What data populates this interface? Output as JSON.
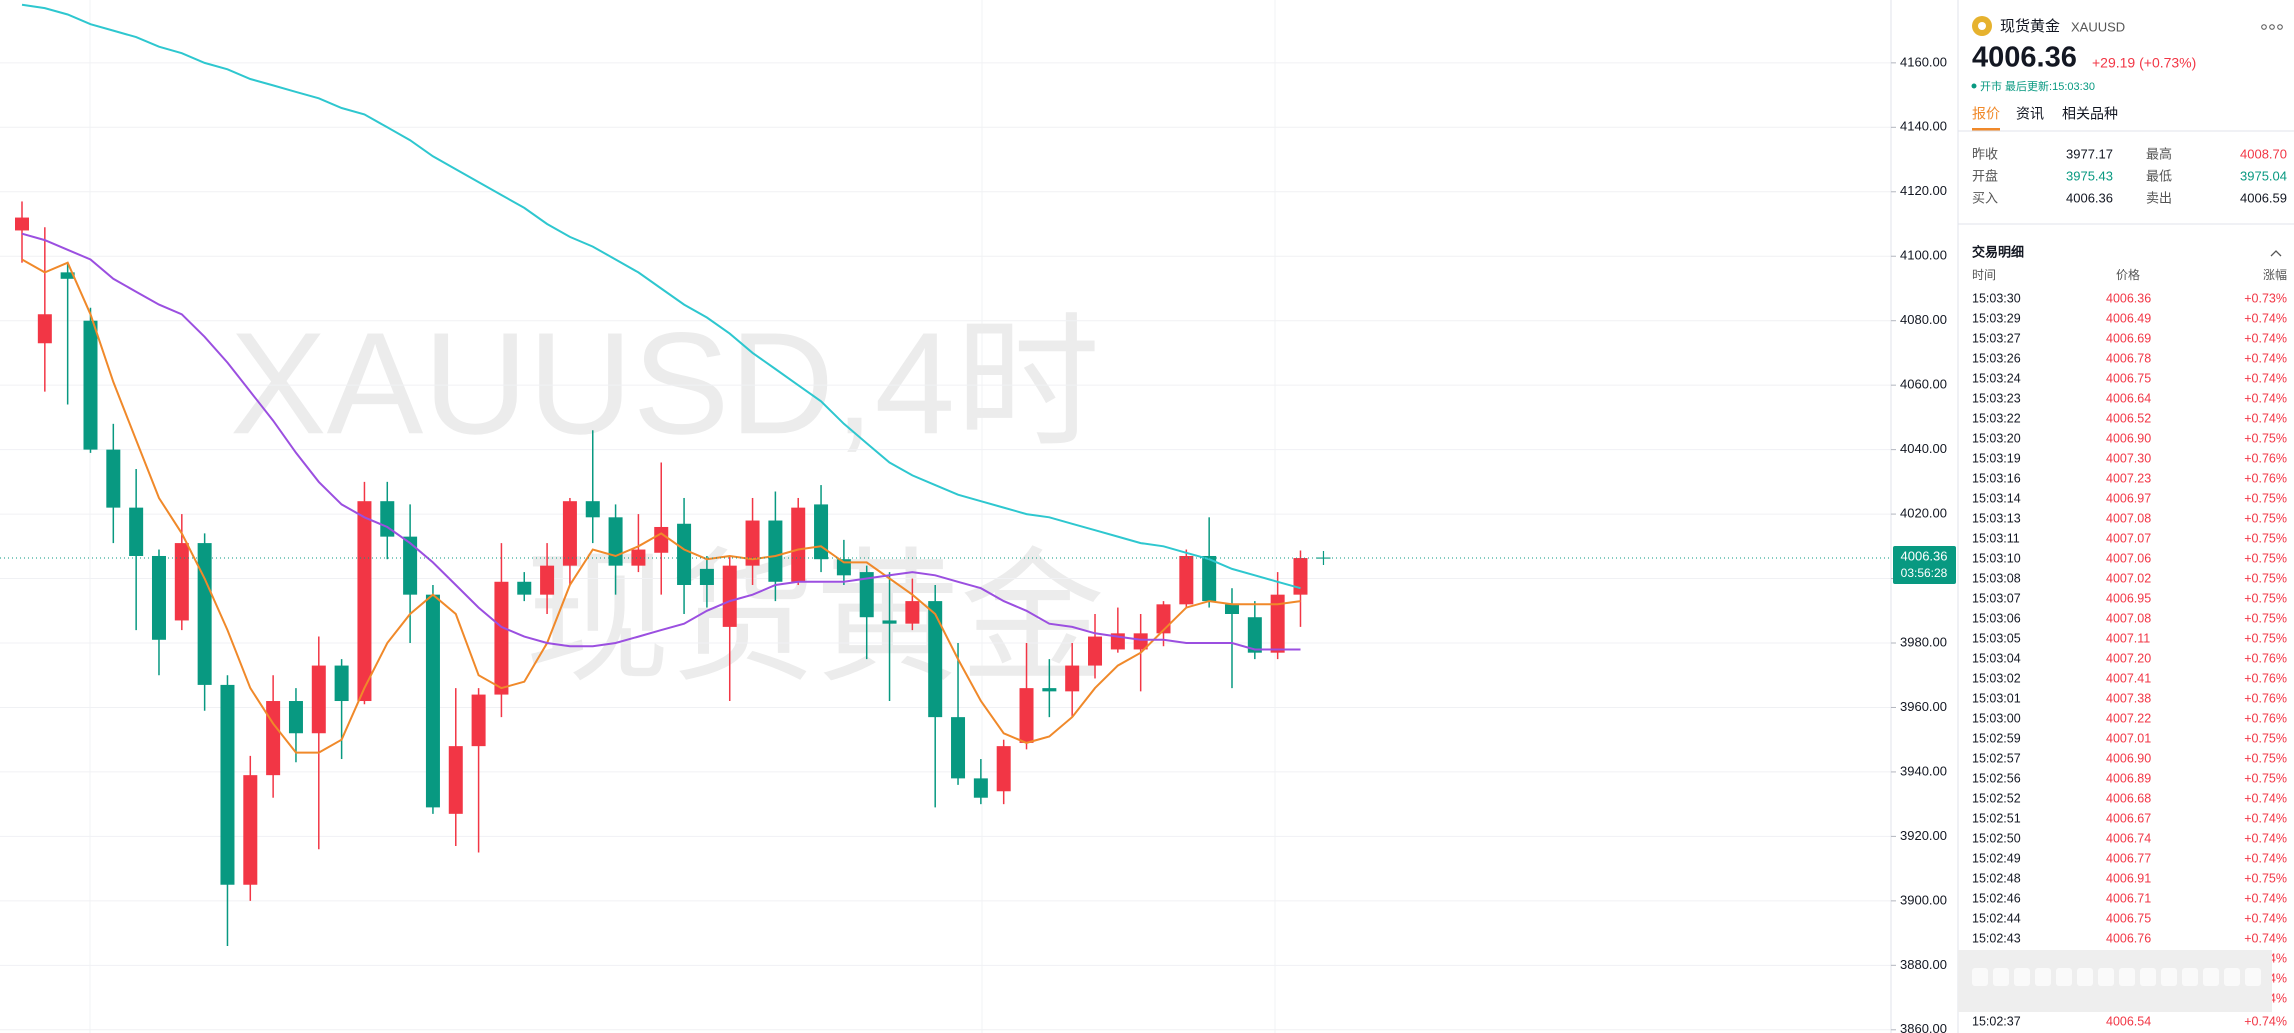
{
  "chart_data": {
    "type": "candlestick",
    "watermark": "XAUUSD,4时",
    "watermark_name": "现货黄金",
    "up_color": "#f23645",
    "down_color": "#089981",
    "open": [
      4108,
      4073,
      4095,
      4080,
      4040,
      4022,
      4007,
      3987,
      4011,
      3967,
      3905,
      3939,
      3962,
      3952,
      3973,
      3962,
      4024,
      4013,
      3995,
      3927,
      3948,
      3964,
      3999,
      3995,
      4004,
      4024,
      4019,
      4004,
      4008,
      4017,
      4003,
      3985,
      4004,
      4018,
      3999,
      4023,
      4006,
      4002,
      3987,
      3986,
      3993,
      3957,
      3938,
      3934,
      3949,
      3966,
      3965,
      3973,
      3978,
      3978,
      3983,
      3992,
      4007,
      3992,
      3988,
      3977,
      3995
    ],
    "high": [
      4117,
      4109,
      4098,
      4084,
      4048,
      4034,
      4009,
      4020,
      4014,
      3970,
      3945,
      3970,
      3966,
      3982,
      3975,
      4030,
      4030,
      4023,
      3998,
      3966,
      3966,
      4011,
      4002,
      4011,
      4025,
      4046,
      4023,
      4020,
      4036,
      4025,
      4007,
      4007,
      4025,
      4027,
      4025,
      4029,
      4012,
      4004,
      4002,
      4000,
      3998,
      3980,
      3944,
      3950,
      3980,
      3975,
      3980,
      3989,
      3991,
      3989,
      3993,
      4009,
      4019,
      3997,
      3993,
      4002,
      4008.7
    ],
    "low": [
      4098,
      4058,
      4054,
      4039,
      4011,
      3984,
      3970,
      3984,
      3959,
      3886,
      3900,
      3932,
      3943,
      3916,
      3944,
      3961,
      4006,
      3980,
      3927,
      3917,
      3915,
      3957,
      3993,
      3989,
      3998,
      4011,
      3995,
      4002,
      3995,
      3989,
      3991,
      3962,
      3998,
      3993,
      3998,
      4002,
      3998,
      3975,
      3962,
      3984,
      3929,
      3936,
      3930,
      3930,
      3947,
      3957,
      3957,
      3969,
      3977,
      3965,
      3979,
      3991,
      3991,
      3966,
      3975,
      3975,
      3985
    ],
    "close": [
      4112,
      4082,
      4093,
      4040,
      4022,
      4007,
      3981,
      4011,
      3967,
      3905,
      3939,
      3962,
      3952,
      3973,
      3962,
      4024,
      4013,
      3995,
      3929,
      3948,
      3964,
      3999,
      3995,
      4004,
      4024,
      4019,
      4004,
      4009,
      4016,
      3998,
      3998,
      4004,
      4018,
      3999,
      4022,
      4006,
      4001,
      3988,
      3986,
      3993,
      3957,
      3938,
      3932,
      3948,
      3966,
      3965,
      3973,
      3982,
      3983,
      3983,
      3992,
      4007,
      3993,
      3989,
      3977,
      3995,
      4006.36
    ],
    "series": [
      {
        "color": "#2ec7cf",
        "values": [
          4178,
          4177,
          4175,
          4172,
          4170,
          4168,
          4165,
          4163,
          4160,
          4158,
          4155,
          4153,
          4151,
          4149,
          4146,
          4144,
          4140,
          4136,
          4131,
          4127,
          4123,
          4119,
          4115,
          4110,
          4106,
          4103,
          4099,
          4095,
          4090,
          4085,
          4081,
          4076,
          4070,
          4065,
          4060,
          4055,
          4048,
          4042,
          4036,
          4032,
          4029,
          4026,
          4024,
          4022,
          4020,
          4019,
          4017,
          4015,
          4013,
          4011,
          4010,
          4008,
          4006,
          4003,
          4001,
          3999,
          3997
        ]
      },
      {
        "color": "#f0892a",
        "values": [
          4099,
          4095,
          4098,
          4082,
          4061,
          4043,
          4025,
          4014,
          4000,
          3984,
          3966,
          3955,
          3946,
          3946,
          3950,
          3966,
          3980,
          3989,
          3995,
          3989,
          3970,
          3966,
          3968,
          3980,
          3998,
          4009,
          4007,
          4010,
          4014,
          4009,
          4006,
          4007,
          4006,
          4007,
          4009,
          4010,
          4005,
          4005,
          4000,
          3995,
          3989,
          3975,
          3962,
          3952,
          3949,
          3951,
          3957,
          3966,
          3973,
          3977,
          3984,
          3991,
          3993,
          3992,
          3992,
          3992,
          3993
        ]
      },
      {
        "color": "#9b4fe0",
        "values": [
          4107,
          4105,
          4102,
          4099,
          4093,
          4089,
          4085,
          4082,
          4075,
          4067,
          4058,
          4049,
          4039,
          4030,
          4023,
          4019,
          4016,
          4011,
          4005,
          3998,
          3991,
          3985,
          3982,
          3980,
          3979,
          3979,
          3980,
          3982,
          3984,
          3986,
          3990,
          3993,
          3995,
          3998,
          3999,
          3999,
          3999,
          4000,
          4001,
          4002,
          4001,
          3999,
          3997,
          3993,
          3990,
          3986,
          3985,
          3983,
          3982,
          3981,
          3981,
          3980,
          3980,
          3980,
          3978,
          3978,
          3978
        ]
      }
    ],
    "ylim": [
      3859,
      4179.5
    ],
    "yticks": [
      {
        "value": 4160,
        "label": "4160.00"
      },
      {
        "value": 4140,
        "label": "4140.00"
      },
      {
        "value": 4120,
        "label": "4120.00"
      },
      {
        "value": 4100,
        "label": "4100.00"
      },
      {
        "value": 4080,
        "label": "4080.00"
      },
      {
        "value": 4060,
        "label": "4060.00"
      },
      {
        "value": 4040,
        "label": "4040.00"
      },
      {
        "value": 4020,
        "label": "4020.00"
      },
      {
        "value": 4000,
        "label": "4000.00"
      },
      {
        "value": 3980,
        "label": "3980.00"
      },
      {
        "value": 3960,
        "label": "3960.00"
      },
      {
        "value": 3940,
        "label": "3940.00"
      },
      {
        "value": 3920,
        "label": "3920.00"
      },
      {
        "value": 3900,
        "label": "3900.00"
      },
      {
        "value": 3880,
        "label": "3880.00"
      },
      {
        "value": 3860,
        "label": "3860.00"
      }
    ],
    "grid": true,
    "last_price": 4006.36,
    "countdown": "03:56:28"
  },
  "panel": {
    "name": "现货黄金",
    "symbol": "XAUUSD",
    "price": "4006.36",
    "change": "+29.19 (+0.73%)",
    "status": "开市 最后更新:15:03:30",
    "tabs": [
      "报价",
      "资讯",
      "相关品种"
    ],
    "stats": [
      [
        "昨收",
        "3977.17",
        "最高",
        "4008.70"
      ],
      [
        "开盘",
        "3975.43",
        "最低",
        "3975.04"
      ],
      [
        "买入",
        "4006.36",
        "卖出",
        "4006.59"
      ]
    ],
    "trades_title": "交易明细",
    "trades_header": [
      "时间",
      "价格",
      "涨幅"
    ],
    "trades": [
      [
        "15:03:30",
        "4006.36",
        "+0.73%"
      ],
      [
        "15:03:29",
        "4006.49",
        "+0.74%"
      ],
      [
        "15:03:27",
        "4006.69",
        "+0.74%"
      ],
      [
        "15:03:26",
        "4006.78",
        "+0.74%"
      ],
      [
        "15:03:24",
        "4006.75",
        "+0.74%"
      ],
      [
        "15:03:23",
        "4006.64",
        "+0.74%"
      ],
      [
        "15:03:22",
        "4006.52",
        "+0.74%"
      ],
      [
        "15:03:20",
        "4006.90",
        "+0.75%"
      ],
      [
        "15:03:19",
        "4007.30",
        "+0.76%"
      ],
      [
        "15:03:16",
        "4007.23",
        "+0.76%"
      ],
      [
        "15:03:14",
        "4006.97",
        "+0.75%"
      ],
      [
        "15:03:13",
        "4007.08",
        "+0.75%"
      ],
      [
        "15:03:11",
        "4007.07",
        "+0.75%"
      ],
      [
        "15:03:10",
        "4007.06",
        "+0.75%"
      ],
      [
        "15:03:08",
        "4007.02",
        "+0.75%"
      ],
      [
        "15:03:07",
        "4006.95",
        "+0.75%"
      ],
      [
        "15:03:06",
        "4007.08",
        "+0.75%"
      ],
      [
        "15:03:05",
        "4007.11",
        "+0.75%"
      ],
      [
        "15:03:04",
        "4007.20",
        "+0.76%"
      ],
      [
        "15:03:02",
        "4007.41",
        "+0.76%"
      ],
      [
        "15:03:01",
        "4007.38",
        "+0.76%"
      ],
      [
        "15:03:00",
        "4007.22",
        "+0.76%"
      ],
      [
        "15:02:59",
        "4007.01",
        "+0.75%"
      ],
      [
        "15:02:57",
        "4006.90",
        "+0.75%"
      ],
      [
        "15:02:56",
        "4006.89",
        "+0.75%"
      ],
      [
        "15:02:52",
        "4006.68",
        "+0.74%"
      ],
      [
        "15:02:51",
        "4006.67",
        "+0.74%"
      ],
      [
        "15:02:50",
        "4006.74",
        "+0.74%"
      ],
      [
        "15:02:49",
        "4006.77",
        "+0.74%"
      ],
      [
        "15:02:48",
        "4006.91",
        "+0.75%"
      ],
      [
        "15:02:46",
        "4006.71",
        "+0.74%"
      ],
      [
        "15:02:44",
        "4006.75",
        "+0.74%"
      ],
      [
        "15:02:43",
        "4006.76",
        "+0.74%"
      ]
    ],
    "hidden_fragments": [
      "4%",
      "4%",
      "4%"
    ],
    "last_trade": [
      "15:02:37",
      "4006.54",
      "+0.74%"
    ]
  }
}
